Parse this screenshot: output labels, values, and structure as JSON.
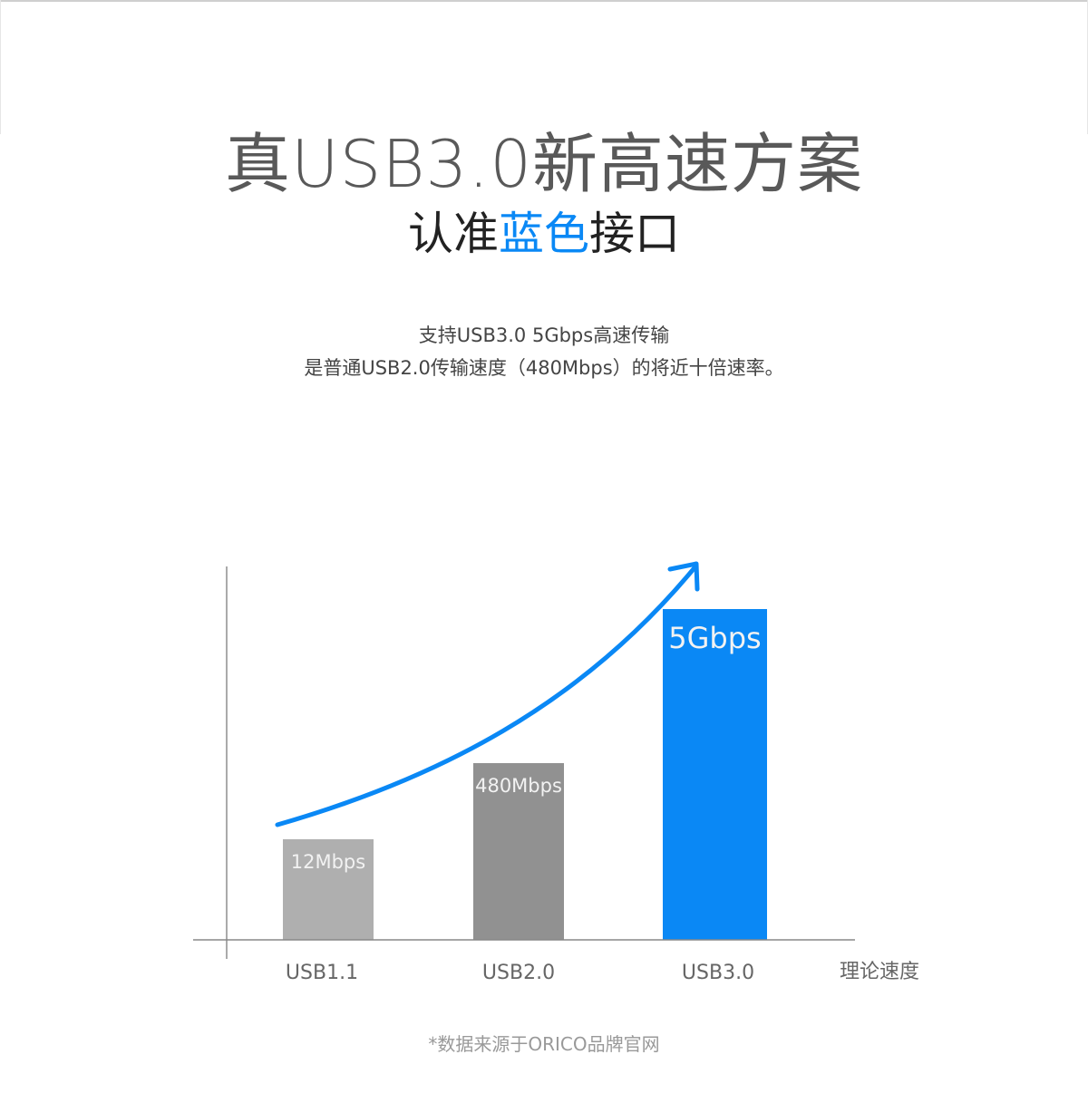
{
  "headline": "真USB3.0新高速方案",
  "subheadline": {
    "prefix": "认准",
    "highlight": "蓝色",
    "suffix": "接口"
  },
  "description": [
    "支持USB3.0 5Gbps高速传输",
    "是普通USB2.0传输速度（480Mbps）的将近十倍速率。"
  ],
  "footnote": "*数据来源于ORICO品牌官网",
  "colors": {
    "accent": "#0a88f5",
    "usb11": "#afafaf",
    "usb20": "#919191",
    "usb30": "#0a88f5"
  },
  "chart_data": {
    "type": "bar",
    "categories": [
      "USB1.1",
      "USB2.0",
      "USB3.0"
    ],
    "values": [
      12,
      480,
      5000
    ],
    "units": "Mbps",
    "data_labels": [
      "12Mbps",
      "480Mbps",
      "5Gbps"
    ],
    "xlabel": "理论速度",
    "ylabel": "",
    "scale": "illustrative (not to scale)",
    "trend_arrow": true,
    "grid": false
  }
}
